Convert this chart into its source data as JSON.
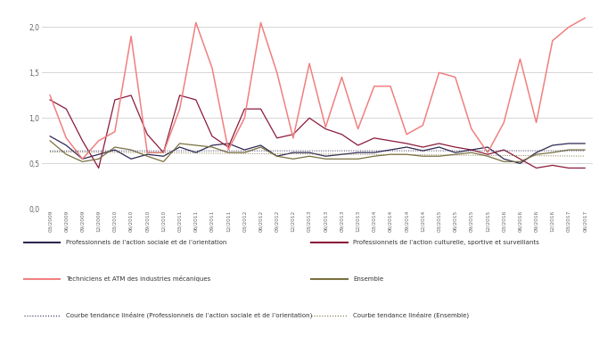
{
  "x_labels": [
    "03/2009",
    "06/2009",
    "09/2009",
    "12/2009",
    "03/2010",
    "06/2010",
    "09/2010",
    "12/2010",
    "03/2011",
    "06/2011",
    "09/2011",
    "12/2011",
    "03/2012",
    "06/2012",
    "09/2012",
    "12/2012",
    "03/2013",
    "06/2013",
    "09/2013",
    "12/2013",
    "03/2014",
    "06/2014",
    "09/2014",
    "12/2014",
    "03/2015",
    "06/2015",
    "09/2015",
    "12/2015",
    "03/2016",
    "06/2016",
    "09/2016",
    "12/2016",
    "03/2017",
    "06/2017"
  ],
  "series_social": [
    0.8,
    0.7,
    0.55,
    0.6,
    0.65,
    0.55,
    0.6,
    0.58,
    0.68,
    0.62,
    0.7,
    0.72,
    0.65,
    0.7,
    0.58,
    0.62,
    0.62,
    0.58,
    0.6,
    0.62,
    0.62,
    0.65,
    0.68,
    0.64,
    0.68,
    0.62,
    0.65,
    0.68,
    0.55,
    0.5,
    0.62,
    0.7,
    0.72,
    0.72
  ],
  "series_cultural": [
    1.2,
    1.1,
    0.75,
    0.45,
    1.2,
    1.25,
    0.82,
    0.62,
    1.25,
    1.2,
    0.8,
    0.68,
    1.1,
    1.1,
    0.78,
    0.82,
    1.0,
    0.88,
    0.82,
    0.7,
    0.78,
    0.75,
    0.72,
    0.68,
    0.72,
    0.68,
    0.65,
    0.6,
    0.65,
    0.55,
    0.45,
    0.48,
    0.45,
    0.45
  ],
  "series_tech": [
    1.25,
    0.78,
    0.55,
    0.75,
    0.85,
    1.9,
    0.62,
    0.62,
    1.1,
    2.05,
    1.55,
    0.65,
    1.0,
    2.05,
    1.5,
    0.78,
    1.6,
    0.9,
    1.45,
    0.88,
    1.35,
    1.35,
    0.82,
    0.92,
    1.5,
    1.45,
    0.88,
    0.62,
    0.95,
    1.65,
    0.95,
    1.85,
    2.0,
    2.1
  ],
  "series_ensemble": [
    0.75,
    0.6,
    0.52,
    0.55,
    0.68,
    0.65,
    0.58,
    0.52,
    0.72,
    0.7,
    0.68,
    0.62,
    0.62,
    0.68,
    0.58,
    0.55,
    0.58,
    0.55,
    0.55,
    0.55,
    0.58,
    0.6,
    0.6,
    0.58,
    0.58,
    0.6,
    0.62,
    0.58,
    0.52,
    0.52,
    0.6,
    0.62,
    0.65,
    0.65
  ],
  "color_social": "#2e2852",
  "color_cultural": "#8b1a3a",
  "color_tech": "#f08080",
  "color_ensemble": "#7a7040",
  "color_trend_social": "#2e2852",
  "color_trend_ensemble": "#7a7040",
  "ylim": [
    0.0,
    2.15
  ],
  "yticks": [
    0.0,
    0.5,
    1.0,
    1.5,
    2.0
  ],
  "ytick_labels": [
    "0,0",
    "0,5",
    "1,0",
    "1,5",
    "2,0"
  ],
  "bg_color": "#ffffff",
  "grid_color": "#d0d0d0",
  "legend": {
    "social": "Professionnels de l’action sociale et de l’orientation",
    "cultural": "Professionnels de l’action culturelle, sportive et surveillants",
    "tech": "Techniciens et ATM des industries mécaniques",
    "ensemble": "Ensemble",
    "trend_social": "Courbe tendance linéaire (Professionnels de l’action sociale et de l’orientation)",
    "trend_ensemble": "Courbe tendance linéaire (Ensemble)"
  }
}
